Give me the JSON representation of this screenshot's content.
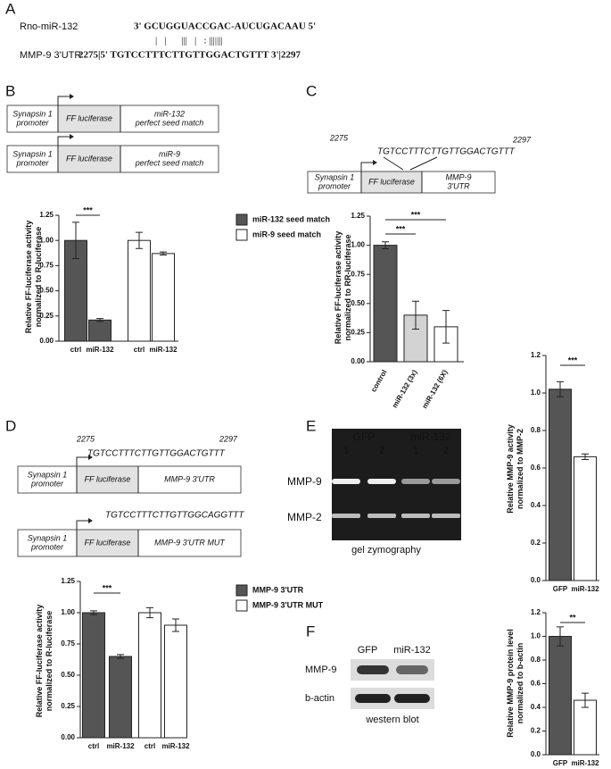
{
  "A": {
    "label": "A",
    "mirna_name": "Rno-miR-132",
    "mirna_seq": "3' GCUGGUACCGAC-AUCUGACAAU 5'",
    "pairing": "|   |      |||   |   : |||||||",
    "utr_name": "MMP-9 3'UTR",
    "utr_seq": "2275|5' TGTCCTTTCTTGTTGGACTGTTT 3'|2297"
  },
  "B": {
    "label": "B",
    "constructs": [
      {
        "promoter": [
          "Synapsin 1",
          "promoter"
        ],
        "reporter": "FF luciferase",
        "target": [
          "miR-132",
          "perfect seed match"
        ]
      },
      {
        "promoter": [
          "Synapsin 1",
          "promoter"
        ],
        "reporter": "FF luciferase",
        "target": [
          "miR-9",
          "perfect seed match"
        ]
      }
    ]
  },
  "C": {
    "label": "C",
    "start": "2275",
    "end": "2297",
    "seq": "TGTCCTTTCTTGTTGGACTGTTT",
    "construct": {
      "promoter": [
        "Synapsin 1",
        "promoter"
      ],
      "reporter": "FF luciferase",
      "target": [
        "MMP-9",
        "3'UTR"
      ]
    }
  },
  "D": {
    "label": "D",
    "start": "2275",
    "end": "2297",
    "seq": "TGTCCTTTCTTGTTGGACTGTTT",
    "mut_seq": "TGTCCTTTCTTGTTGGCAGGTTT",
    "constructs": [
      {
        "promoter": [
          "Synapsin 1",
          "promoter"
        ],
        "reporter": "FF luciferase",
        "target": [
          "MMP-9 3'UTR"
        ]
      },
      {
        "promoter": [
          "Synapsin 1",
          "promoter"
        ],
        "reporter": "FF luciferase",
        "target": [
          "MMP-9 3'UTR MUT"
        ]
      }
    ]
  },
  "E": {
    "label": "E",
    "groups": [
      "GFP",
      "miR-132"
    ],
    "lanes": [
      "1",
      "2",
      "1",
      "2"
    ],
    "bands": [
      "MMP-9",
      "MMP-2"
    ],
    "caption": "gel zymography"
  },
  "F": {
    "label": "F",
    "groups": [
      "GFP",
      "miR-132"
    ],
    "bands": [
      "MMP-9",
      "b-actin"
    ],
    "caption": "western blot"
  },
  "chart_data": [
    {
      "type": "bar",
      "ylabel": [
        "Relative FF-luciferase activity",
        "normalized to R-luciferase"
      ],
      "categories": [
        "ctrl",
        "miR-132",
        "ctrl",
        "miR-132"
      ],
      "series": [
        {
          "name": "miR-132 seed match",
          "color": "#555555",
          "values": [
            1.0,
            0.21,
            null,
            null
          ],
          "errors": [
            0.18,
            0.015,
            null,
            null
          ]
        },
        {
          "name": "miR-9 seed match",
          "color": "#ffffff",
          "values": [
            null,
            null,
            1.0,
            0.87
          ],
          "errors": [
            null,
            null,
            0.08,
            0.015
          ]
        }
      ],
      "ylim": [
        0,
        1.25
      ],
      "yticks": [
        {
          "value": 0,
          "label": "0.00"
        },
        0.25,
        {
          "value": 0.5,
          "label": "0.50"
        },
        0.75,
        {
          "value": 1,
          "label": "1.00"
        },
        1.25
      ],
      "annotations": [
        "***"
      ]
    },
    {
      "type": "bar",
      "ylabel": [
        "Relative FF-luciferase activity",
        "normalized to RR-luciferase"
      ],
      "categories": [
        "control",
        "miR-132 (3x)",
        "miR-132 (6X)"
      ],
      "values": [
        1.0,
        0.4,
        0.3
      ],
      "errors": [
        0.03,
        0.12,
        0.14
      ],
      "colors": [
        "#555555",
        "#d3d3d3",
        "#ffffff"
      ],
      "ylim": [
        0,
        1.25
      ],
      "yticks": [
        {
          "value": 0,
          "label": "0.00"
        },
        0.25,
        {
          "value": 0.5,
          "label": "0.50"
        },
        0.75,
        {
          "value": 1,
          "label": "1.00"
        },
        1.25
      ],
      "annotations": [
        "***",
        "***"
      ]
    },
    {
      "type": "bar",
      "ylabel": [
        "Relative FF-luciferase activity",
        "normalized to R-luciferase"
      ],
      "categories": [
        "ctrl",
        "miR-132",
        "ctrl",
        "miR-132"
      ],
      "series": [
        {
          "name": "MMP-9 3'UTR",
          "color": "#555555",
          "values": [
            1.0,
            0.65,
            null,
            null
          ],
          "errors": [
            0.015,
            0.015,
            null,
            null
          ]
        },
        {
          "name": "MMP-9 3'UTR MUT",
          "color": "#ffffff",
          "values": [
            null,
            null,
            1.0,
            0.9
          ],
          "errors": [
            null,
            null,
            0.04,
            0.05
          ]
        }
      ],
      "ylim": [
        0,
        1.25
      ],
      "yticks": [
        {
          "value": 0,
          "label": "0.00"
        },
        0.25,
        {
          "value": 0.5,
          "label": "0.50"
        },
        0.75,
        {
          "value": 1,
          "label": "1.00"
        },
        1.25
      ],
      "annotations": [
        "***"
      ]
    },
    {
      "type": "bar",
      "ylabel": [
        "Relative MMP-9 activity",
        "normalized to MMP-2"
      ],
      "categories": [
        "GFP",
        "miR-132"
      ],
      "values": [
        1.02,
        0.66
      ],
      "errors": [
        0.04,
        0.015
      ],
      "colors": [
        "#555555",
        "#ffffff"
      ],
      "ylim": [
        0,
        1.2
      ],
      "yticks": [
        {
          "value": 0,
          "label": "0.0"
        },
        0.2,
        0.4,
        0.6,
        0.8,
        {
          "value": 1,
          "label": "1.0"
        },
        1.2
      ],
      "annotations": [
        "***"
      ]
    },
    {
      "type": "bar",
      "ylabel": [
        "Relative MMP-9 protein level",
        "normalized to b-actin"
      ],
      "categories": [
        "GFP",
        "miR-132"
      ],
      "values": [
        1.0,
        0.46
      ],
      "errors": [
        0.08,
        0.06
      ],
      "colors": [
        "#555555",
        "#ffffff"
      ],
      "ylim": [
        0,
        1.2
      ],
      "yticks": [
        {
          "value": 0,
          "label": "0.0"
        },
        0.2,
        0.4,
        0.6,
        0.8,
        {
          "value": 1,
          "label": "1.0"
        },
        1.2
      ],
      "annotations": [
        "**"
      ]
    }
  ]
}
